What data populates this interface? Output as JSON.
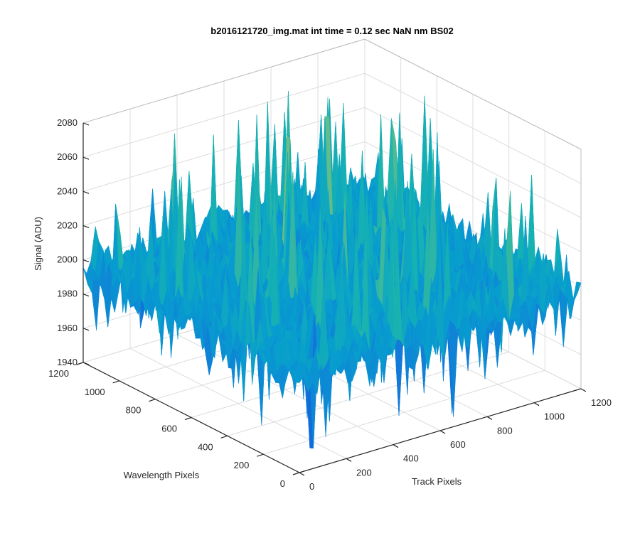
{
  "chart_data": {
    "type": "surface",
    "title": "b2016121720_img.mat int time = 0.12 sec  NaN nm BS02",
    "xlabel": "Track Pixels",
    "ylabel": "Wavelength Pixels",
    "zlabel": "Signal (ADU)",
    "xlim": [
      0,
      1200
    ],
    "ylim": [
      0,
      1200
    ],
    "zlim": [
      1940,
      2080
    ],
    "x_ticks": [
      "0",
      "200",
      "400",
      "600",
      "800",
      "1000",
      "1200"
    ],
    "y_ticks": [
      "0",
      "200",
      "400",
      "600",
      "800",
      "1000",
      "1200"
    ],
    "z_ticks": [
      "1940",
      "1960",
      "1980",
      "2000",
      "2020",
      "2040",
      "2060",
      "2080"
    ],
    "grid": true,
    "colormap": "parula",
    "surface": {
      "mean_signal": 1995,
      "noise_std": 8,
      "min_signal": 1943,
      "max_signal": 2078
    },
    "colors": {
      "low": "#1f77d0",
      "mid": "#27b2a8",
      "high": "#c8d254",
      "axis": "#262626",
      "grid": "#dcdcdc"
    }
  }
}
